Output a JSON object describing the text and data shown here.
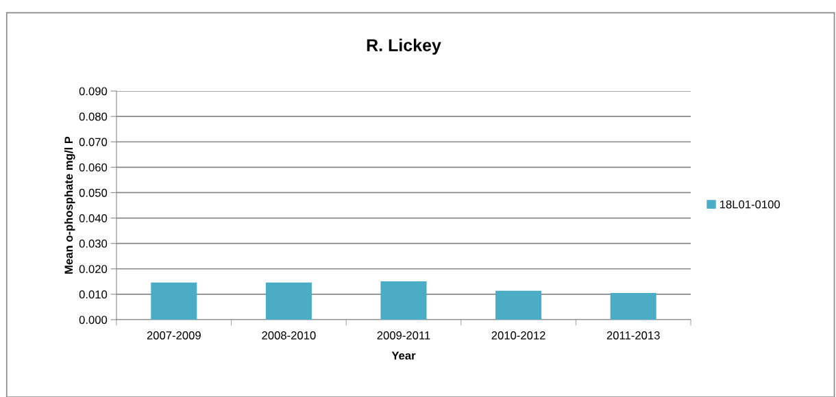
{
  "chart_data": {
    "type": "bar",
    "title": "R. Lickey",
    "xlabel": "Year",
    "ylabel": "Mean o-phosphate mg/l P",
    "categories": [
      "2007-2009",
      "2008-2010",
      "2009-2011",
      "2010-2012",
      "2011-2013"
    ],
    "series": [
      {
        "name": "18L01-0100",
        "color": "#4bacc6",
        "values": [
          0.0146,
          0.0146,
          0.0151,
          0.0114,
          0.0105
        ]
      }
    ],
    "ylim": [
      0,
      0.09
    ],
    "yticks": [
      {
        "value": 0,
        "label": "0.000"
      },
      {
        "value": 0.01,
        "label": "0.010"
      },
      {
        "value": 0.02,
        "label": "0.020"
      },
      {
        "value": 0.03,
        "label": "0.030"
      },
      {
        "value": 0.04,
        "label": "0.040"
      },
      {
        "value": 0.05,
        "label": "0.050"
      },
      {
        "value": 0.06,
        "label": "0.060"
      },
      {
        "value": 0.07,
        "label": "0.070"
      },
      {
        "value": 0.08,
        "label": "0.080"
      },
      {
        "value": 0.09,
        "label": "0.090"
      }
    ],
    "grid": "y",
    "legend": "right"
  }
}
